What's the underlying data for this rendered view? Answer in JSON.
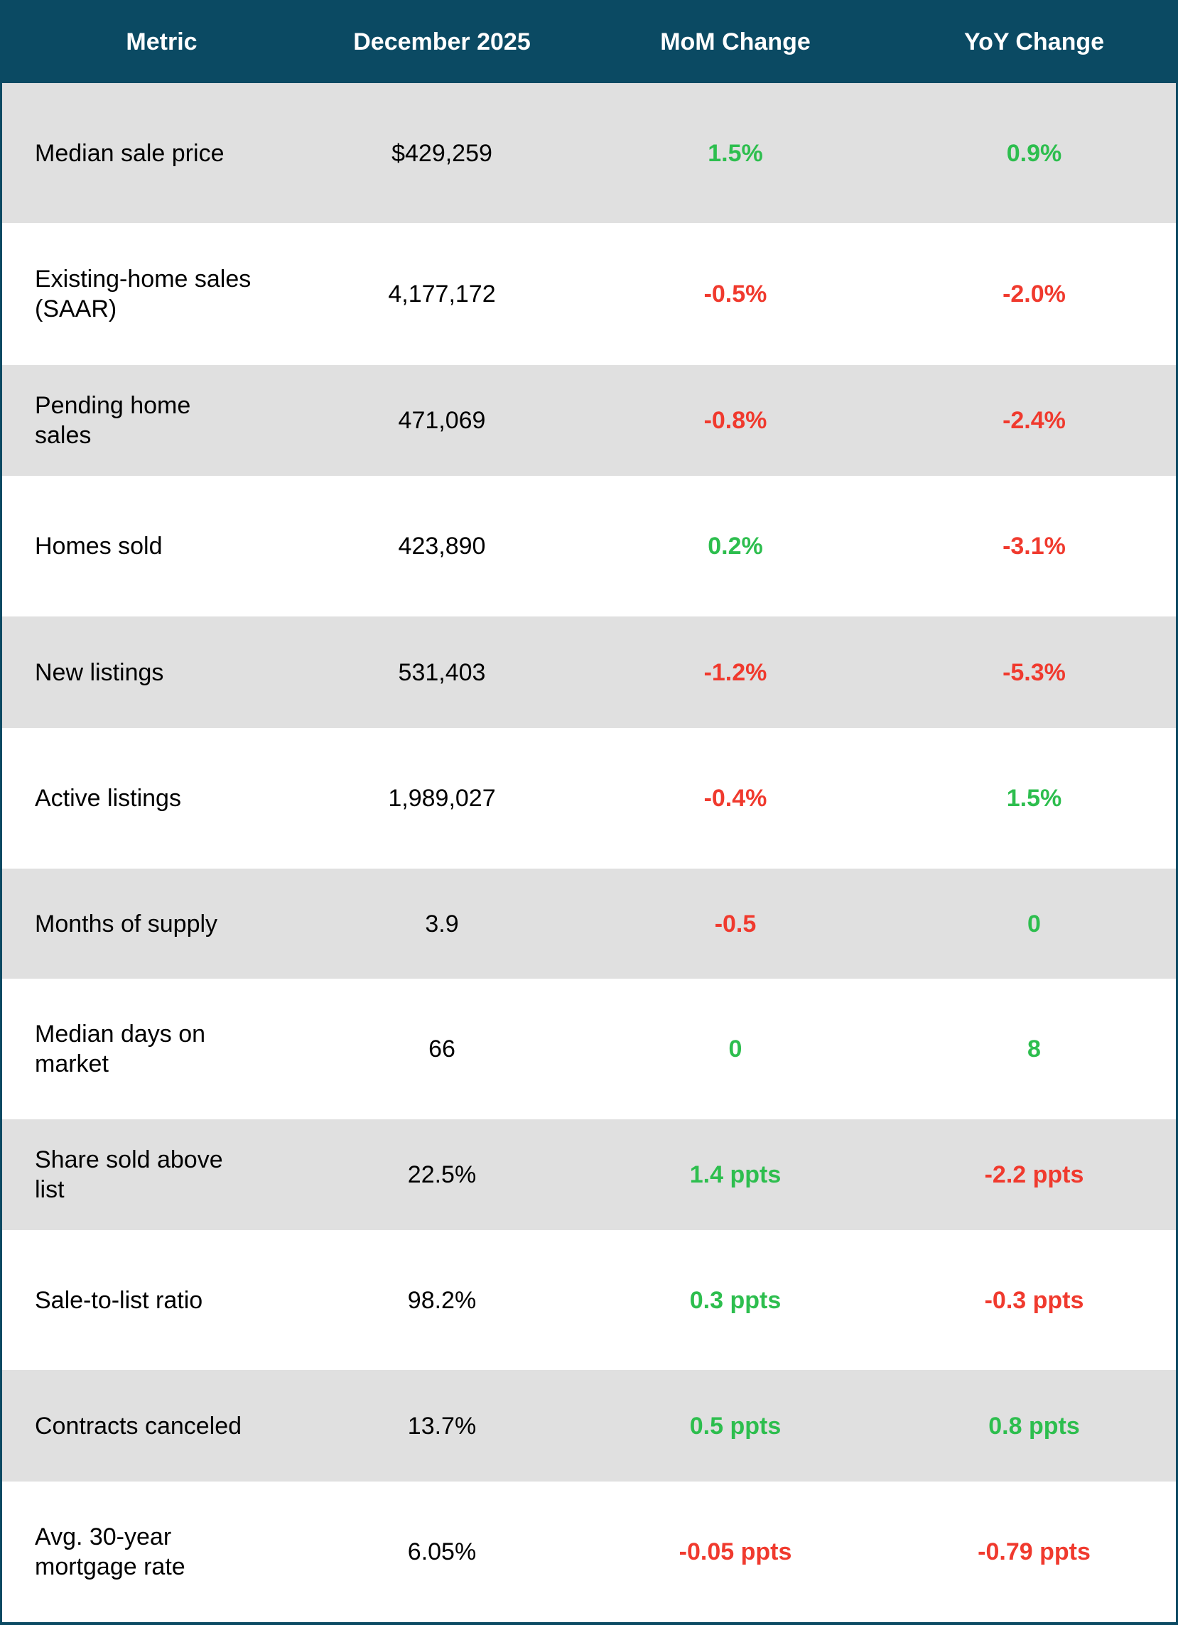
{
  "colors": {
    "header_bg": "#0b4a63",
    "positive": "#2dbe4e",
    "negative": "#f03a2e",
    "alt_row": "#e0e0e0"
  },
  "headers": [
    "Metric",
    "December 2025",
    "MoM Change",
    "YoY Change"
  ],
  "rows": [
    {
      "metric": "Median sale price",
      "value": "$429,259",
      "mom": "1.5%",
      "mom_dir": "pos",
      "yoy": "0.9%",
      "yoy_dir": "pos"
    },
    {
      "metric": "Existing-home sales\n(SAAR)",
      "value": "4,177,172",
      "mom": "-0.5%",
      "mom_dir": "neg",
      "yoy": "-2.0%",
      "yoy_dir": "neg"
    },
    {
      "metric": "Pending home\nsales",
      "value": "471,069",
      "mom": "-0.8%",
      "mom_dir": "neg",
      "yoy": "-2.4%",
      "yoy_dir": "neg"
    },
    {
      "metric": "Homes sold",
      "value": "423,890",
      "mom": "0.2%",
      "mom_dir": "pos",
      "yoy": "-3.1%",
      "yoy_dir": "neg"
    },
    {
      "metric": "New listings",
      "value": "531,403",
      "mom": "-1.2%",
      "mom_dir": "neg",
      "yoy": "-5.3%",
      "yoy_dir": "neg"
    },
    {
      "metric": "Active listings",
      "value": "1,989,027",
      "mom": "-0.4%",
      "mom_dir": "neg",
      "yoy": "1.5%",
      "yoy_dir": "pos"
    },
    {
      "metric": "Months of supply",
      "value": "3.9",
      "mom": "-0.5",
      "mom_dir": "neg",
      "yoy": "0",
      "yoy_dir": "pos"
    },
    {
      "metric": "Median days on\nmarket",
      "value": "66",
      "mom": "0",
      "mom_dir": "pos",
      "yoy": "8",
      "yoy_dir": "pos"
    },
    {
      "metric": "Share sold above\nlist",
      "value": "22.5%",
      "mom": "1.4 ppts",
      "mom_dir": "pos",
      "yoy": "-2.2 ppts",
      "yoy_dir": "neg"
    },
    {
      "metric": "Sale-to-list ratio",
      "value": "98.2%",
      "mom": "0.3 ppts",
      "mom_dir": "pos",
      "yoy": "-0.3 ppts",
      "yoy_dir": "neg"
    },
    {
      "metric": "Contracts canceled",
      "value": "13.7%",
      "mom": "0.5 ppts",
      "mom_dir": "pos",
      "yoy": "0.8 ppts",
      "yoy_dir": "pos"
    },
    {
      "metric": "Avg. 30-year\nmortgage rate",
      "value": "6.05%",
      "mom": "-0.05 ppts",
      "mom_dir": "neg",
      "yoy": "-0.79 ppts",
      "yoy_dir": "neg"
    }
  ]
}
